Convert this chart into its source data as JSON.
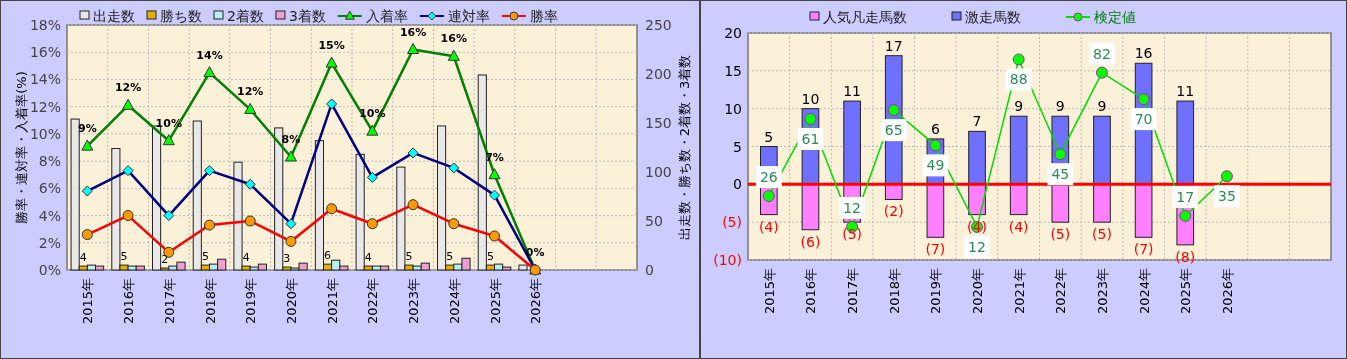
{
  "chart_data": [
    {
      "type": "bar",
      "categories": [
        "2015年",
        "2016年",
        "2017年",
        "2018年",
        "2019年",
        "2020年",
        "2021年",
        "2022年",
        "2023年",
        "2024年",
        "2025年",
        "2026年",
        null,
        null
      ],
      "ylabel": "勝率・連対率・入着率(%)",
      "y2label": "出走数・勝ち数・2着数・3着数",
      "ylim": [
        0,
        18
      ],
      "yticks": [
        {
          "value": 0,
          "label": "0%"
        },
        {
          "value": 2,
          "label": "2%"
        },
        {
          "value": 4,
          "label": "4%"
        },
        {
          "value": 6,
          "label": "6%"
        },
        {
          "value": 8,
          "label": "8%"
        },
        {
          "value": 10,
          "label": "10%"
        },
        {
          "value": 12,
          "label": "12%"
        },
        {
          "value": 14,
          "label": "14%"
        },
        {
          "value": 16,
          "label": "16%"
        },
        {
          "value": 18,
          "label": "18%"
        }
      ],
      "y2lim": [
        0,
        250
      ],
      "y2ticks": [
        0,
        50,
        100,
        150,
        200,
        250
      ],
      "grid": true,
      "legend": "top",
      "series": [
        {
          "name": "出走数",
          "type": "bar",
          "axis": "y2",
          "color": "#e8e8e8",
          "values": [
            154,
            124,
            147,
            152,
            110,
            145,
            132,
            118,
            105,
            147,
            199,
            5,
            null,
            null
          ]
        },
        {
          "name": "勝ち数",
          "type": "bar",
          "axis": "y2",
          "color": "#e6b000",
          "values": [
            4,
            5,
            2,
            5,
            4,
            3,
            6,
            4,
            5,
            5,
            5,
            0,
            null,
            null
          ],
          "value_labels": [
            "4",
            "5",
            "2",
            "5",
            "4",
            "3",
            "6",
            "4",
            "5",
            "5",
            "5",
            null,
            null,
            null
          ]
        },
        {
          "name": "2着数",
          "type": "bar",
          "axis": "y2",
          "color": "#b8f0f0",
          "values": [
            5,
            4,
            4,
            6,
            3,
            2,
            10,
            4,
            4,
            6,
            6,
            0,
            null,
            null
          ]
        },
        {
          "name": "3着数",
          "type": "bar",
          "axis": "y2",
          "color": "#f0a0d0",
          "values": [
            4,
            4,
            8,
            11,
            6,
            7,
            4,
            4,
            7,
            12,
            3,
            0,
            null,
            null
          ]
        },
        {
          "name": "入着率",
          "type": "line",
          "color": "#008000",
          "marker": "triangle",
          "values": [
            9.1,
            12.1,
            9.5,
            14.5,
            11.8,
            8.3,
            15.2,
            10.2,
            16.2,
            15.7,
            7.0,
            0,
            null,
            null
          ],
          "value_labels": [
            "9%",
            "12%",
            "10%",
            "14%",
            "12%",
            "8%",
            "15%",
            "10%",
            "16%",
            "16%",
            "7%",
            "0%",
            null,
            null
          ]
        },
        {
          "name": "連対率",
          "type": "line",
          "color": "#000080",
          "marker": "diamond",
          "values": [
            5.8,
            7.3,
            4.0,
            7.3,
            6.3,
            3.4,
            12.2,
            6.8,
            8.6,
            7.5,
            5.5,
            0,
            null,
            null
          ]
        },
        {
          "name": "勝率",
          "type": "line",
          "color": "#ff0000",
          "marker": "circle",
          "values": [
            2.6,
            4.0,
            1.3,
            3.3,
            3.6,
            2.1,
            4.5,
            3.4,
            4.8,
            3.4,
            2.5,
            0,
            null,
            null
          ]
        }
      ]
    },
    {
      "type": "bar",
      "stacked": true,
      "categories": [
        "2015年",
        "2016年",
        "2017年",
        "2018年",
        "2019年",
        "2020年",
        "2021年",
        "2022年",
        "2023年",
        "2024年",
        "2025年",
        "2026年",
        null,
        null
      ],
      "ylim": [
        -10,
        20
      ],
      "yticks": [
        {
          "value": -10,
          "label": "(10)"
        },
        {
          "value": -5,
          "label": "(5)"
        },
        0,
        5,
        10,
        15,
        20
      ],
      "y2lim": [
        -3,
        100
      ],
      "grid": true,
      "legend": "top",
      "ref_lines": [
        {
          "axis": "y",
          "value": 0,
          "color": "#ff0000"
        }
      ],
      "series": [
        {
          "name": "人気凡走馬数",
          "color": "#ff80ff",
          "values": [
            -4,
            -6,
            -5,
            -2,
            -7,
            -4,
            -4,
            -5,
            -5,
            -7,
            -8,
            null,
            null,
            null
          ],
          "value_labels": [
            "(4)",
            "(6)",
            "(5)",
            "(2)",
            "(7)",
            "(4)",
            "(4)",
            "(5)",
            "(5)",
            "(7)",
            "(8)",
            null,
            null,
            null
          ]
        },
        {
          "name": "激走馬数",
          "color": "#7070ff",
          "values": [
            5,
            10,
            11,
            17,
            6,
            7,
            9,
            9,
            9,
            16,
            11,
            null,
            null,
            null
          ],
          "data_labels": true
        },
        {
          "name": "検定値",
          "type": "line",
          "axis": "y2",
          "color": "#00dd00",
          "marker": "circle",
          "values": [
            26,
            61,
            12,
            65,
            49,
            12,
            88,
            45,
            82,
            70,
            17,
            35,
            null,
            null
          ],
          "data_labels": true
        }
      ]
    }
  ]
}
